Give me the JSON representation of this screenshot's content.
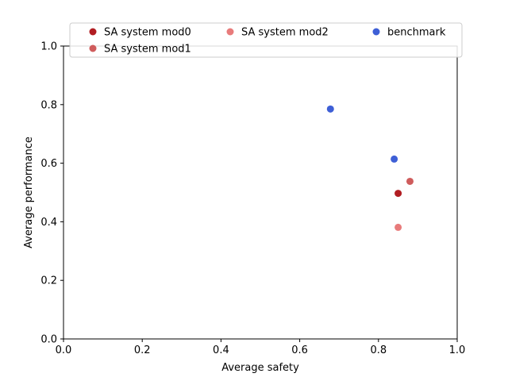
{
  "chart_data": {
    "type": "scatter",
    "title": "",
    "xlabel": "Average safety",
    "ylabel": "Average performance",
    "xlim": [
      0.0,
      1.0
    ],
    "ylim": [
      0.0,
      1.0
    ],
    "xticks": [
      "0.0",
      "0.2",
      "0.4",
      "0.6",
      "0.8",
      "1.0"
    ],
    "yticks": [
      "0.0",
      "0.2",
      "0.4",
      "0.6",
      "0.8",
      "1.0"
    ],
    "grid": false,
    "legend": {
      "placement": "top",
      "columns": 3
    },
    "series": [
      {
        "name": "SA system mod0",
        "color": "#b11d22",
        "points": [
          {
            "x": 0.85,
            "y": 0.497
          }
        ]
      },
      {
        "name": "SA system mod1",
        "color": "#cf5c5c",
        "points": [
          {
            "x": 0.88,
            "y": 0.538
          }
        ]
      },
      {
        "name": "SA system mod2",
        "color": "#e87b7b",
        "points": [
          {
            "x": 0.85,
            "y": 0.381
          }
        ]
      },
      {
        "name": "benchmark",
        "color": "#3e5fd6",
        "points": [
          {
            "x": 0.678,
            "y": 0.785
          },
          {
            "x": 0.84,
            "y": 0.614
          }
        ]
      }
    ]
  }
}
